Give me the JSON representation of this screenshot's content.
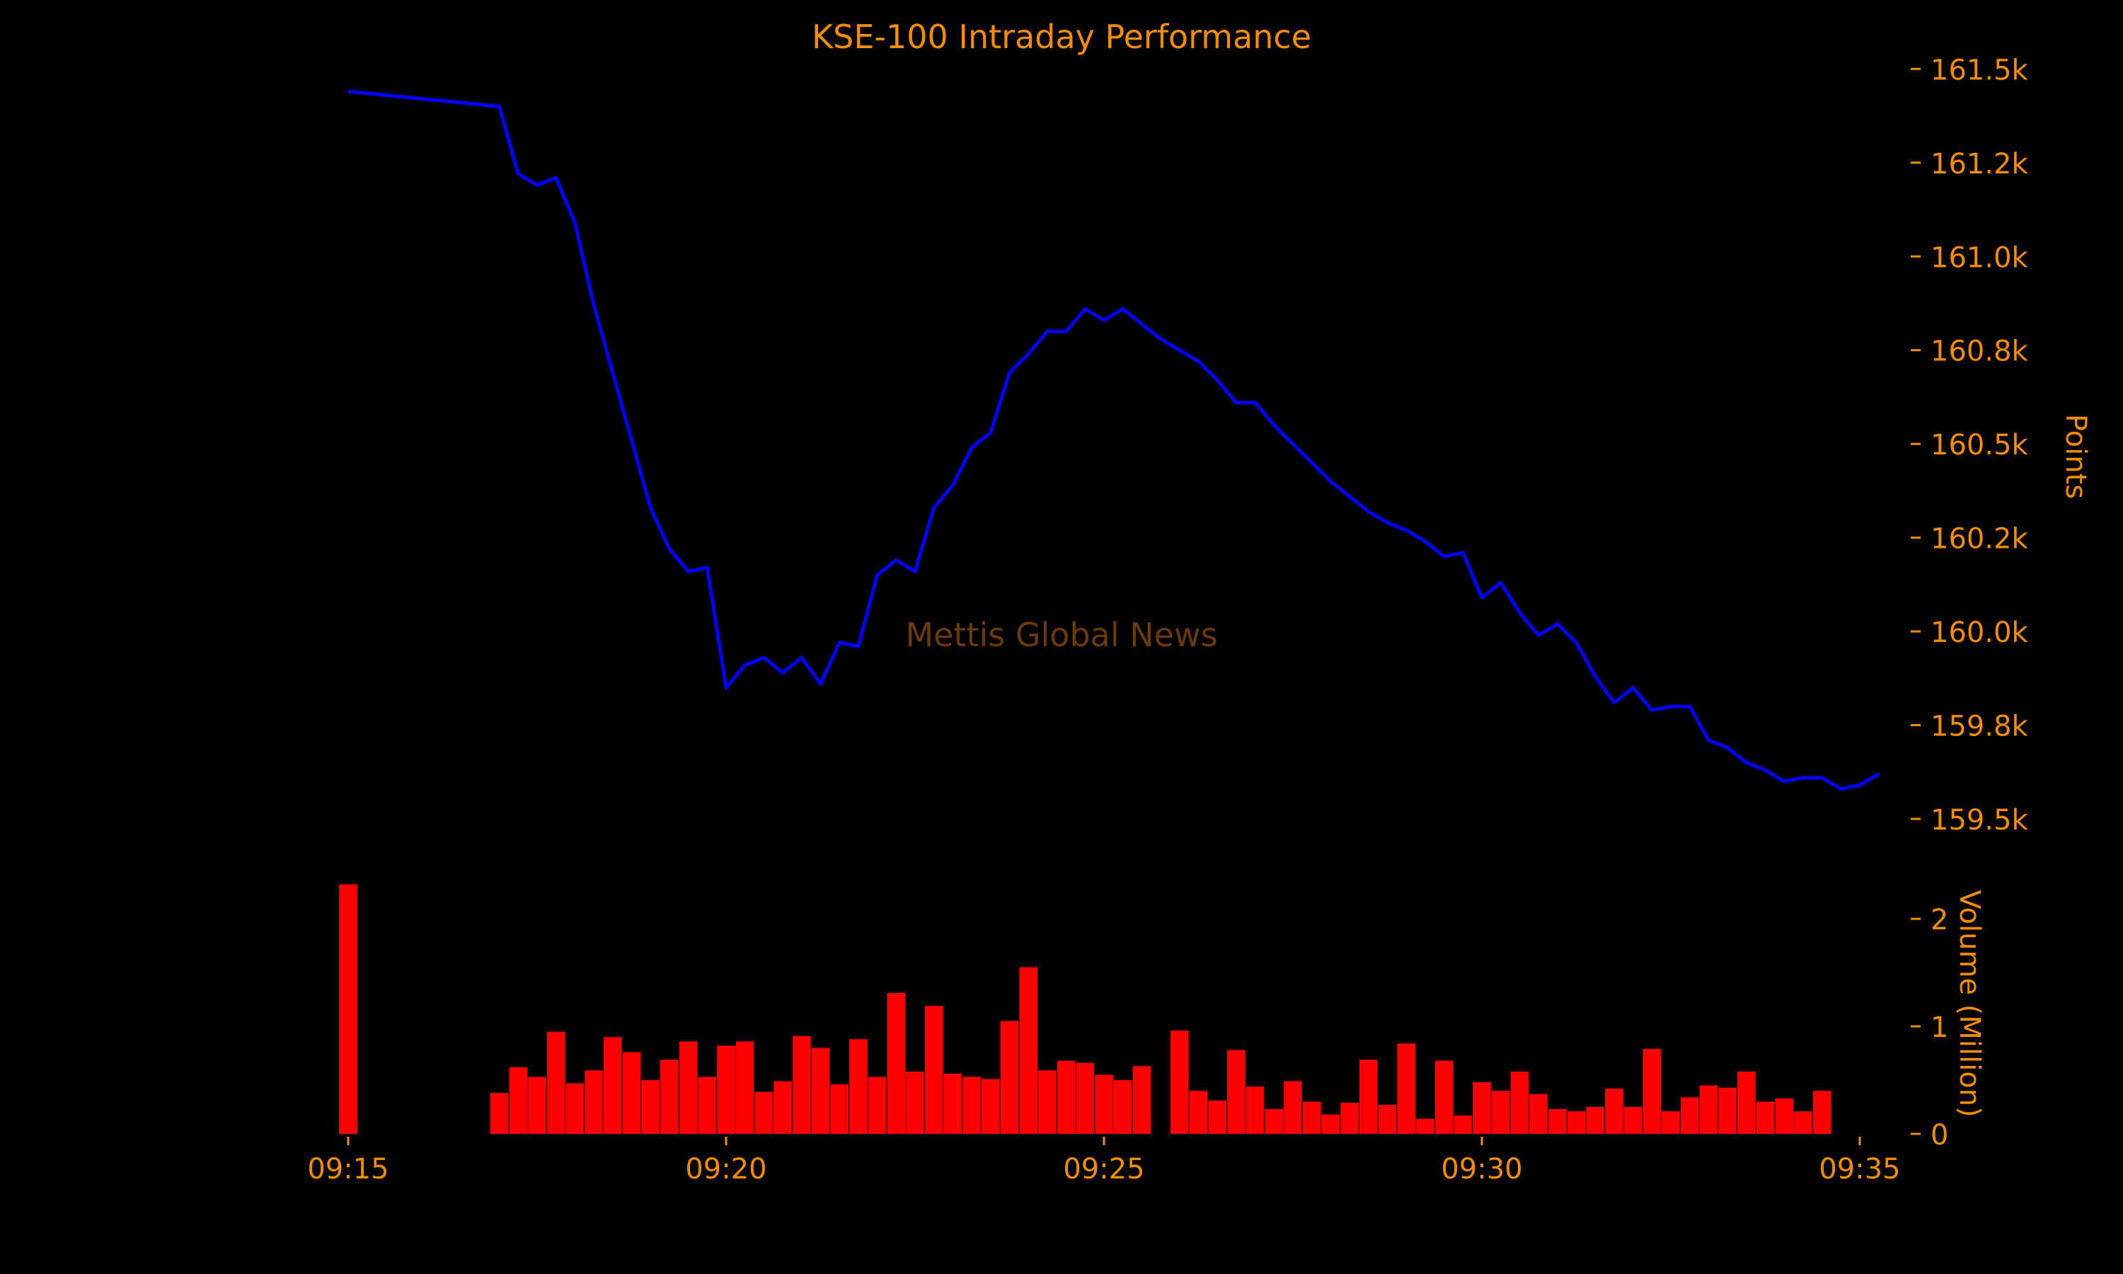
{
  "colors": {
    "background": "#000000",
    "text": "#f28c00",
    "line": "#0000ff",
    "bars": "#ff0000",
    "watermark": "#6b3a0c"
  },
  "watermark": "Mettis Global News",
  "chart_data": {
    "type": "line",
    "title": "KSE-100 Intraday Performance",
    "price_axis": {
      "label": "Points",
      "position": "right",
      "range": [
        159400,
        161580
      ],
      "ticks": [
        {
          "value": 159500,
          "label": "159.5k"
        },
        {
          "value": 159750,
          "label": "159.8k"
        },
        {
          "value": 160000,
          "label": "160.0k"
        },
        {
          "value": 160250,
          "label": "160.2k"
        },
        {
          "value": 160500,
          "label": "160.5k"
        },
        {
          "value": 160750,
          "label": "160.8k"
        },
        {
          "value": 161000,
          "label": "161.0k"
        },
        {
          "value": 161250,
          "label": "161.2k"
        },
        {
          "value": 161500,
          "label": "161.5k"
        }
      ]
    },
    "volume_axis": {
      "label": "Volume (Million)",
      "position": "right",
      "range": [
        0,
        2.35
      ],
      "ticks": [
        {
          "value": 0,
          "label": "0"
        },
        {
          "value": 1,
          "label": "1"
        },
        {
          "value": 2,
          "label": "2"
        }
      ]
    },
    "x_axis": {
      "range": [
        "09:15",
        "09:35"
      ],
      "ticks": [
        "09:15",
        "09:20",
        "09:25",
        "09:30",
        "09:35"
      ]
    },
    "series": [
      {
        "kind": "line",
        "points": [
          [
            "09:15:00",
            161440
          ],
          [
            "09:17:00",
            161400
          ],
          [
            "09:17:15",
            161220
          ],
          [
            "09:17:30",
            161190
          ],
          [
            "09:17:45",
            161210
          ],
          [
            "09:18:00",
            161090
          ],
          [
            "09:18:15",
            160870
          ],
          [
            "09:18:30",
            160690
          ],
          [
            "09:18:45",
            160510
          ],
          [
            "09:19:00",
            160330
          ],
          [
            "09:19:15",
            160220
          ],
          [
            "09:19:30",
            160160
          ],
          [
            "09:19:45",
            160170
          ],
          [
            "09:20:00",
            159850
          ],
          [
            "09:20:15",
            159910
          ],
          [
            "09:20:30",
            159930
          ],
          [
            "09:20:45",
            159890
          ],
          [
            "09:21:00",
            159930
          ],
          [
            "09:21:15",
            159860
          ],
          [
            "09:21:30",
            159970
          ],
          [
            "09:21:45",
            159960
          ],
          [
            "09:22:00",
            160150
          ],
          [
            "09:22:15",
            160190
          ],
          [
            "09:22:30",
            160160
          ],
          [
            "09:22:45",
            160330
          ],
          [
            "09:23:00",
            160390
          ],
          [
            "09:23:15",
            160490
          ],
          [
            "09:23:30",
            160530
          ],
          [
            "09:23:45",
            160690
          ],
          [
            "09:24:00",
            160740
          ],
          [
            "09:24:15",
            160800
          ],
          [
            "09:24:30",
            160800
          ],
          [
            "09:24:45",
            160860
          ],
          [
            "09:25:00",
            160830
          ],
          [
            "09:25:15",
            160860
          ],
          [
            "09:25:30",
            160820
          ],
          [
            "09:25:45",
            160780
          ],
          [
            "09:26:00",
            160750
          ],
          [
            "09:26:15",
            160720
          ],
          [
            "09:26:30",
            160670
          ],
          [
            "09:26:45",
            160610
          ],
          [
            "09:27:00",
            160610
          ],
          [
            "09:27:15",
            160550
          ],
          [
            "09:27:30",
            160500
          ],
          [
            "09:27:45",
            160450
          ],
          [
            "09:28:00",
            160400
          ],
          [
            "09:28:15",
            160360
          ],
          [
            "09:28:30",
            160320
          ],
          [
            "09:28:45",
            160290
          ],
          [
            "09:29:00",
            160270
          ],
          [
            "09:29:15",
            160240
          ],
          [
            "09:29:30",
            160200
          ],
          [
            "09:29:45",
            160210
          ],
          [
            "09:30:00",
            160090
          ],
          [
            "09:30:15",
            160130
          ],
          [
            "09:30:30",
            160050
          ],
          [
            "09:30:45",
            159990
          ],
          [
            "09:31:00",
            160020
          ],
          [
            "09:31:15",
            159970
          ],
          [
            "09:31:30",
            159880
          ],
          [
            "09:31:45",
            159810
          ],
          [
            "09:32:00",
            159850
          ],
          [
            "09:32:15",
            159790
          ],
          [
            "09:32:30",
            159800
          ],
          [
            "09:32:45",
            159800
          ],
          [
            "09:33:00",
            159710
          ],
          [
            "09:33:15",
            159690
          ],
          [
            "09:33:30",
            159650
          ],
          [
            "09:33:45",
            159630
          ],
          [
            "09:34:00",
            159600
          ],
          [
            "09:34:15",
            159610
          ],
          [
            "09:34:30",
            159610
          ],
          [
            "09:34:45",
            159580
          ],
          [
            "09:35:00",
            159590
          ],
          [
            "09:35:15",
            159620
          ]
        ]
      },
      {
        "kind": "bar",
        "points": [
          [
            "09:15:00",
            2.32
          ],
          [
            "09:17:00",
            0.38
          ],
          [
            "09:17:15",
            0.62
          ],
          [
            "09:17:30",
            0.53
          ],
          [
            "09:17:45",
            0.95
          ],
          [
            "09:18:00",
            0.47
          ],
          [
            "09:18:15",
            0.59
          ],
          [
            "09:18:30",
            0.9
          ],
          [
            "09:18:45",
            0.76
          ],
          [
            "09:19:00",
            0.5
          ],
          [
            "09:19:15",
            0.69
          ],
          [
            "09:19:30",
            0.86
          ],
          [
            "09:19:45",
            0.53
          ],
          [
            "09:20:00",
            0.82
          ],
          [
            "09:20:15",
            0.86
          ],
          [
            "09:20:30",
            0.39
          ],
          [
            "09:20:45",
            0.49
          ],
          [
            "09:21:00",
            0.91
          ],
          [
            "09:21:15",
            0.8
          ],
          [
            "09:21:30",
            0.46
          ],
          [
            "09:21:45",
            0.88
          ],
          [
            "09:22:00",
            0.53
          ],
          [
            "09:22:15",
            1.31
          ],
          [
            "09:22:30",
            0.58
          ],
          [
            "09:22:45",
            1.19
          ],
          [
            "09:23:00",
            0.56
          ],
          [
            "09:23:15",
            0.53
          ],
          [
            "09:23:30",
            0.51
          ],
          [
            "09:23:45",
            1.05
          ],
          [
            "09:24:00",
            1.55
          ],
          [
            "09:24:15",
            0.59
          ],
          [
            "09:24:30",
            0.68
          ],
          [
            "09:24:45",
            0.66
          ],
          [
            "09:25:00",
            0.55
          ],
          [
            "09:25:15",
            0.5
          ],
          [
            "09:25:30",
            0.63
          ],
          [
            "09:26:00",
            0.96
          ],
          [
            "09:26:15",
            0.4
          ],
          [
            "09:26:30",
            0.31
          ],
          [
            "09:26:45",
            0.78
          ],
          [
            "09:27:00",
            0.44
          ],
          [
            "09:27:15",
            0.23
          ],
          [
            "09:27:30",
            0.49
          ],
          [
            "09:27:45",
            0.3
          ],
          [
            "09:28:00",
            0.18
          ],
          [
            "09:28:15",
            0.29
          ],
          [
            "09:28:30",
            0.69
          ],
          [
            "09:28:45",
            0.27
          ],
          [
            "09:29:00",
            0.84
          ],
          [
            "09:29:15",
            0.14
          ],
          [
            "09:29:30",
            0.68
          ],
          [
            "09:29:45",
            0.17
          ],
          [
            "09:30:00",
            0.48
          ],
          [
            "09:30:15",
            0.4
          ],
          [
            "09:30:30",
            0.58
          ],
          [
            "09:30:45",
            0.37
          ],
          [
            "09:31:00",
            0.23
          ],
          [
            "09:31:15",
            0.21
          ],
          [
            "09:31:30",
            0.25
          ],
          [
            "09:31:45",
            0.42
          ],
          [
            "09:32:00",
            0.25
          ],
          [
            "09:32:15",
            0.79
          ],
          [
            "09:32:30",
            0.21
          ],
          [
            "09:32:45",
            0.34
          ],
          [
            "09:33:00",
            0.45
          ],
          [
            "09:33:15",
            0.43
          ],
          [
            "09:33:30",
            0.58
          ],
          [
            "09:33:45",
            0.3
          ],
          [
            "09:34:00",
            0.33
          ],
          [
            "09:34:15",
            0.21
          ],
          [
            "09:34:30",
            0.4
          ]
        ]
      }
    ]
  }
}
